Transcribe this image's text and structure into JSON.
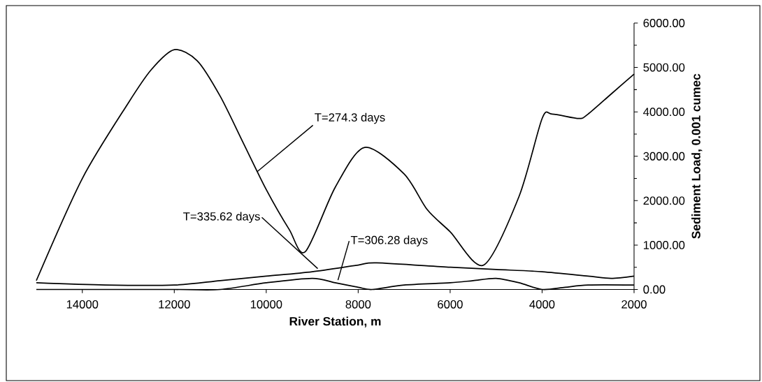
{
  "chart_data": {
    "type": "line",
    "xlabel": "River Station, m",
    "ylabel": "Sediment Load, 0.001 cumec",
    "xlim": [
      15000,
      2000
    ],
    "xticks": [
      14000,
      12000,
      10000,
      8000,
      6000,
      4000,
      2000
    ],
    "ylim": [
      0,
      6000
    ],
    "yticks": [
      {
        "value": 0,
        "label": "0.00"
      },
      {
        "value": 1000,
        "label": "1000.00"
      },
      {
        "value": 2000,
        "label": "2000.00"
      },
      {
        "value": 3000,
        "label": "3000.00"
      },
      {
        "value": 4000,
        "label": "4000.00"
      },
      {
        "value": 5000,
        "label": "5000.00"
      },
      {
        "value": 6000,
        "label": "6000.00"
      }
    ],
    "grid": false,
    "marker": "none",
    "line_style": "solid",
    "series": [
      {
        "color": "#000000",
        "x": [
          15000,
          14000,
          13000,
          12500,
          12000,
          11500,
          11000,
          10500,
          10000,
          9500,
          9150,
          8500,
          7860,
          7000,
          6500,
          6000,
          5270,
          4500,
          4000,
          3780,
          3200,
          3000,
          2500,
          2000
        ],
        "values": [
          200,
          2500,
          4200,
          4950,
          5400,
          5150,
          4350,
          3300,
          2250,
          1350,
          850,
          2300,
          3200,
          2600,
          1800,
          1300,
          550,
          2100,
          3850,
          3950,
          3850,
          3950,
          4400,
          4850
        ]
      },
      {
        "color": "#000000",
        "x": [
          15000,
          13500,
          12000,
          11000,
          10000,
          9000,
          8000,
          7600,
          6000,
          5000,
          4000,
          3000,
          2500,
          2000
        ],
        "values": [
          150,
          100,
          100,
          200,
          300,
          400,
          550,
          600,
          500,
          450,
          400,
          300,
          250,
          300
        ]
      },
      {
        "color": "#000000",
        "x": [
          15000,
          12000,
          11000,
          10000,
          9000,
          8500,
          8000,
          7700,
          7000,
          6000,
          5500,
          5000,
          4500,
          4000,
          3500,
          3000,
          2000
        ],
        "values": [
          0,
          0,
          0,
          150,
          250,
          150,
          50,
          0,
          100,
          150,
          200,
          250,
          150,
          0,
          50,
          100,
          100
        ]
      }
    ],
    "annotations": [
      {
        "text": "T=274.3 days",
        "x": 10200,
        "y": 2650
      },
      {
        "text": "T=335.62 days",
        "x": 8880,
        "y": 470
      },
      {
        "text": "T=306.28 days",
        "x": 8440,
        "y": 210
      }
    ]
  }
}
